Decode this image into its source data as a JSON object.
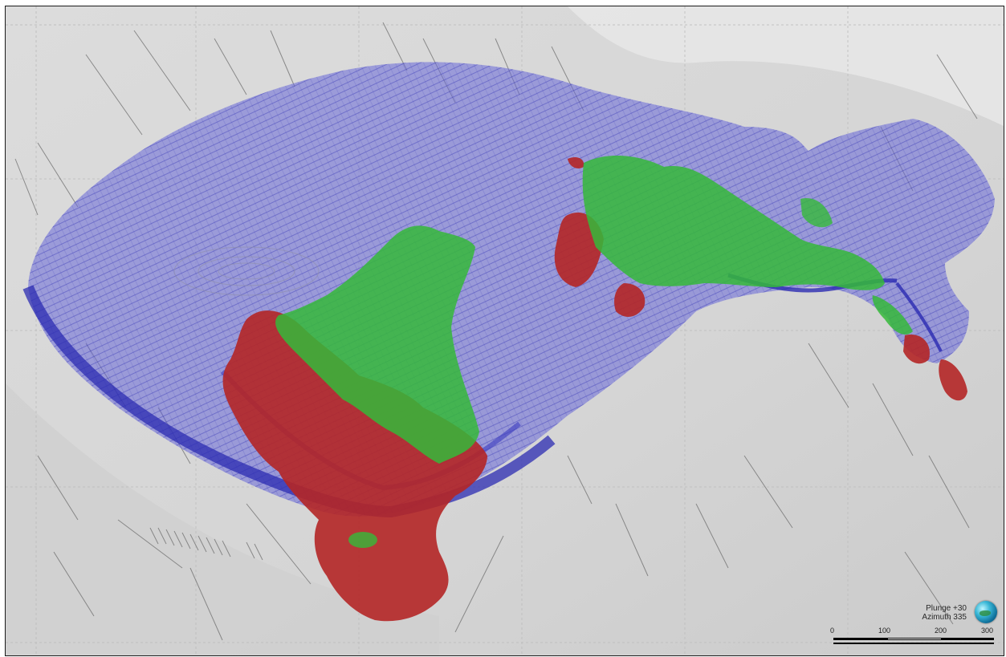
{
  "viewer": {
    "orientation": {
      "plunge": "Plunge +30",
      "azimuth": "Azimuth 335"
    },
    "scale_bar": {
      "ticks": [
        "0",
        "100",
        "200",
        "300"
      ]
    },
    "icons": {
      "orientation_globe": "globe-icon"
    },
    "colors": {
      "terrain": "#d6d6d6",
      "pit_shell": "#5f5fd2",
      "pit_rim": "#2b2bb2",
      "high_grade": "#b42626",
      "medium_grade": "#35b93a",
      "drillhole": "#6e6e6e"
    }
  }
}
